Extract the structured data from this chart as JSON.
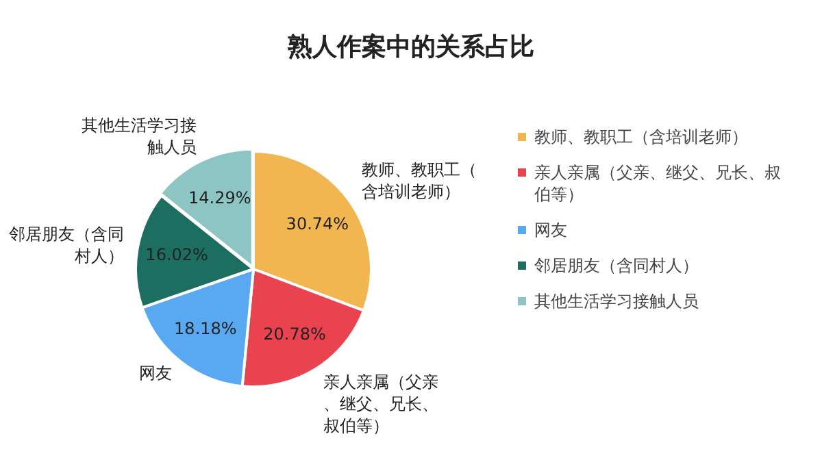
{
  "chart_data": {
    "type": "pie",
    "title": "熟人作案中的关系占比",
    "categories": [
      "教师、教职工（含培训老师）",
      "亲人亲属（父亲、继父、兄长、叔伯等）",
      "网友",
      "邻居朋友（含同村人）",
      "其他生活学习接触人员"
    ],
    "values": [
      30.74,
      20.78,
      18.18,
      16.02,
      14.29
    ],
    "value_labels": [
      "30.74%",
      "20.78%",
      "18.18%",
      "16.02%",
      "14.29%"
    ],
    "colors": [
      "#f2b650",
      "#e8434f",
      "#59a8f2",
      "#1c6f60",
      "#8cc5c3"
    ],
    "legend": "right"
  }
}
